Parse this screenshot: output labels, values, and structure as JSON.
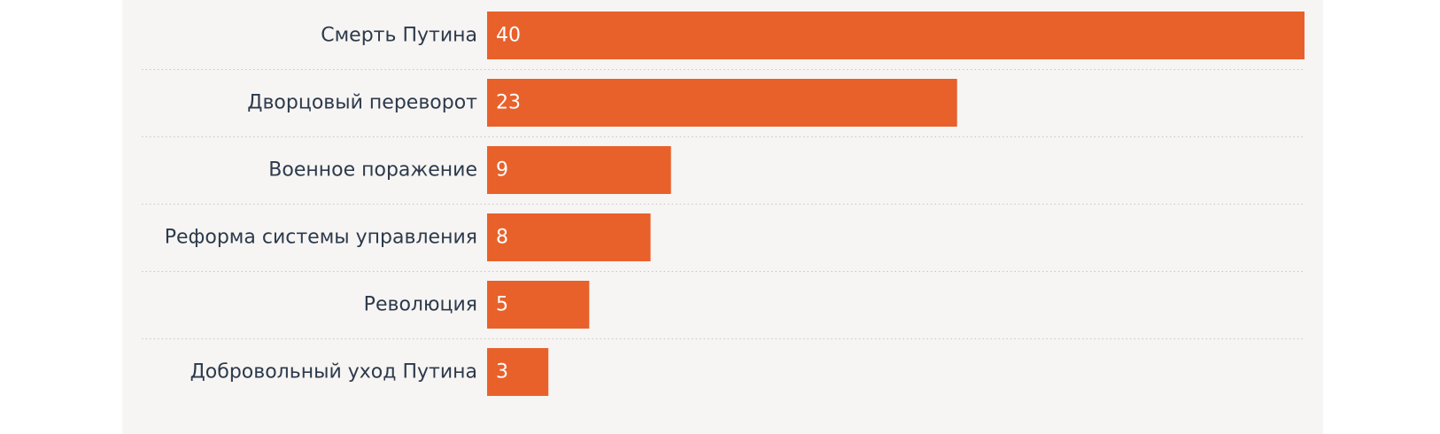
{
  "chart_data": {
    "type": "bar",
    "orientation": "horizontal",
    "categories": [
      "Смерть Путина",
      "Дворцовый переворот",
      "Военное поражение",
      "Реформа системы управления",
      "Революция",
      "Добровольный уход Путина"
    ],
    "values": [
      40,
      23,
      9,
      8,
      5,
      3
    ],
    "value_labels": [
      "40",
      "23",
      "9",
      "8",
      "5",
      "3"
    ],
    "xlim": [
      0,
      40
    ],
    "title": "",
    "xlabel": "",
    "ylabel": "",
    "grid": "dotted separators between rows",
    "colors": {
      "bar": "#e8612b",
      "background": "#f7f5f3",
      "label": "#2c3a4c",
      "value_label": "#ffffff",
      "separator": "#c9c6c2"
    }
  }
}
